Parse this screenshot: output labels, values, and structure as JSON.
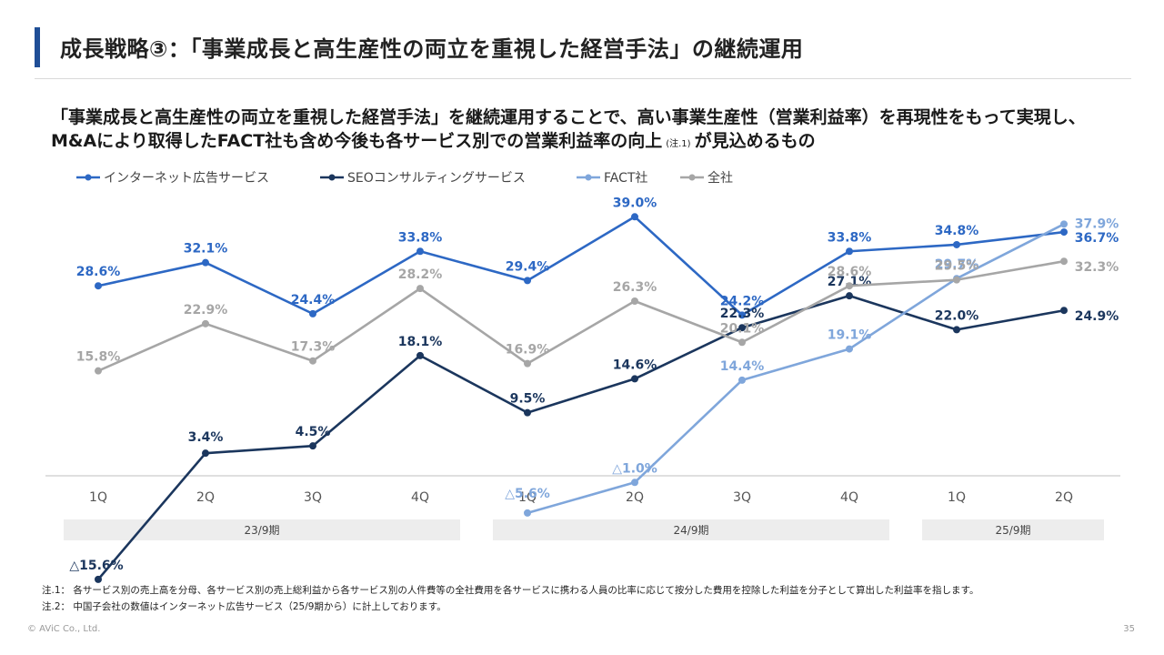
{
  "header": {
    "title": "成長戦略③：「事業成長と高生産性の両立を重視した経営手法」の継続運用"
  },
  "lead": {
    "text_before_note": "「事業成長と高生産性の両立を重視した経営手法」を継続運用することで、高い事業生産性（営業利益率）を再現性をもって実現し、M&Aにより取得したFACT社も含め今後も各サービス別での営業利益率の向上",
    "note_mark": "(注.1)",
    "text_after_note": "が見込めるもの"
  },
  "chart_data": {
    "type": "line",
    "categories": [
      "1Q",
      "2Q",
      "3Q",
      "4Q",
      "1Q",
      "2Q",
      "3Q",
      "4Q",
      "1Q",
      "2Q"
    ],
    "periods": [
      {
        "label": "23/9期",
        "span": [
          0,
          3
        ]
      },
      {
        "label": "24/9期",
        "span": [
          4,
          7
        ]
      },
      {
        "label": "25/9期",
        "span": [
          8,
          9
        ]
      }
    ],
    "value_unit": "%",
    "negative_prefix": "△",
    "legend_position": "top-left",
    "grid": false,
    "ylim": [
      -16,
      40
    ],
    "series": [
      {
        "name": "インターネット広告サービス",
        "color": "#2d68c4",
        "values": [
          28.6,
          32.1,
          24.4,
          33.8,
          29.4,
          39.0,
          24.2,
          33.8,
          34.8,
          36.7
        ]
      },
      {
        "name": "SEOコンサルティングサービス",
        "color": "#1b365d",
        "values": [
          -15.6,
          3.4,
          4.5,
          18.1,
          9.5,
          14.6,
          22.3,
          27.1,
          22.0,
          24.9
        ]
      },
      {
        "name": "FACT社",
        "color": "#7fa6db",
        "values": [
          null,
          null,
          null,
          null,
          -5.6,
          -1.0,
          14.4,
          19.1,
          29.7,
          37.9
        ]
      },
      {
        "name": "全社",
        "color": "#a6a6a6",
        "values": [
          15.8,
          22.9,
          17.3,
          28.2,
          16.9,
          26.3,
          20.1,
          28.6,
          29.5,
          32.3
        ]
      }
    ]
  },
  "footnotes": [
    "注.1：  各サービス別の売上高を分母、各サービス別の売上総利益から各サービス別の人件費等の全社費用を各サービスに携わる人員の比率に応じて按分した費用を控除した利益を分子として算出した利益率を指します。",
    "注.2：  中国子会社の数値はインターネット広告サービス（25/9期から）に計上しております。"
  ],
  "footer": {
    "copyright": "© AViC Co., Ltd.",
    "page_number": "35"
  }
}
